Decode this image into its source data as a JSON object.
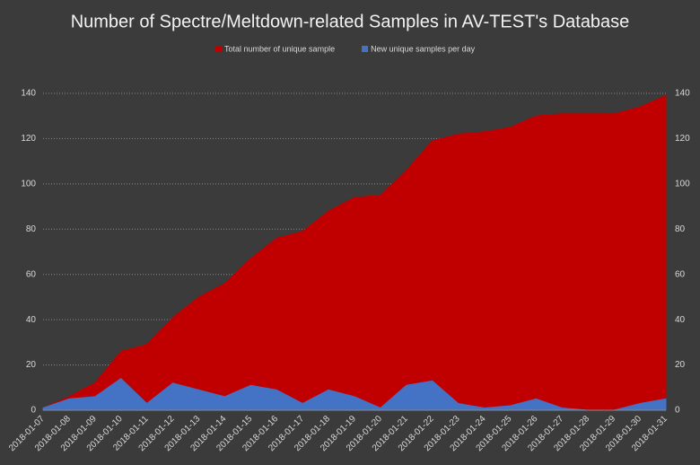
{
  "chart_data": {
    "type": "area",
    "title": "Number of Spectre/Meltdown-related Samples in AV-TEST's Database",
    "categories": [
      "2018-01-07",
      "2018-01-08",
      "2018-01-09",
      "2018-01-10",
      "2018-01-11",
      "2018-01-12",
      "2018-01-13",
      "2018-01-14",
      "2018-01-15",
      "2018-01-16",
      "2018-01-17",
      "2018-01-18",
      "2018-01-19",
      "2018-01-20",
      "2018-01-21",
      "2018-01-22",
      "2018-01-23",
      "2018-01-24",
      "2018-01-25",
      "2018-01-26",
      "2018-01-27",
      "2018-01-28",
      "2018-01-29",
      "2018-01-30",
      "2018-01-31"
    ],
    "series": [
      {
        "name": "Total number of unique sample",
        "color": "#c00000",
        "values": [
          1,
          6,
          12,
          26,
          29,
          41,
          50,
          56,
          67,
          76,
          79,
          88,
          94,
          95,
          106,
          119,
          122,
          123,
          125,
          130,
          131,
          131,
          131,
          134,
          139
        ]
      },
      {
        "name": "New unique samples per day",
        "color": "#4472c4",
        "values": [
          1,
          5,
          6,
          14,
          3,
          12,
          9,
          6,
          11,
          9,
          3,
          9,
          6,
          1,
          11,
          13,
          3,
          1,
          2,
          5,
          1,
          0,
          0,
          3,
          5
        ]
      }
    ],
    "ylim": [
      0,
      140
    ],
    "yticks": [
      0,
      20,
      40,
      60,
      80,
      100,
      120,
      140
    ],
    "y2lim": [
      0,
      140
    ],
    "y2ticks": [
      0,
      20,
      40,
      60,
      80,
      100,
      120,
      140
    ],
    "grid": true,
    "legend": "top"
  }
}
